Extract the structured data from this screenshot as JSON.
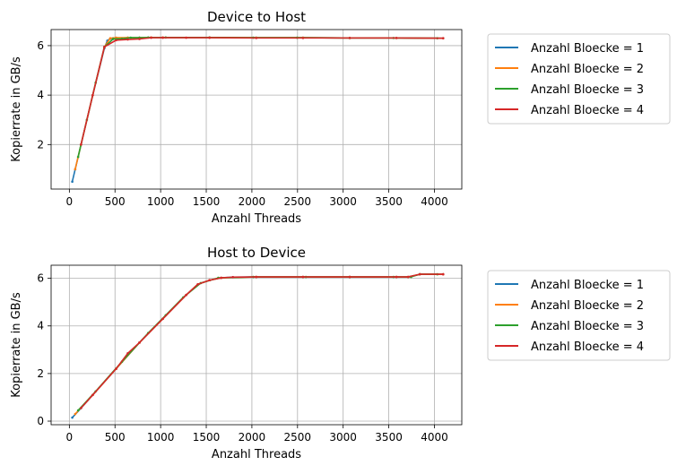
{
  "chart_data": [
    {
      "type": "line",
      "title": "Device to Host",
      "xlabel": "Anzahl Threads",
      "ylabel": "Kopierrate in GB/s",
      "xlim": [
        -200,
        4300
      ],
      "ylim": [
        0.2,
        6.65
      ],
      "xticks": [
        0,
        500,
        1000,
        1500,
        2000,
        2500,
        3000,
        3500,
        4000
      ],
      "yticks": [
        2,
        4,
        6
      ],
      "grid": true,
      "legend": "outside-right",
      "series": [
        {
          "name": "Anzahl Bloecke = 1",
          "color": "#1f77b4",
          "x": [
            32,
            64,
            128,
            256,
            384,
            416,
            448,
            480,
            512,
            640,
            768,
            896,
            1024,
            1536,
            2048,
            2560,
            3072,
            3584,
            4096
          ],
          "y": [
            0.5,
            1.0,
            2.0,
            4.0,
            5.9,
            6.2,
            6.28,
            6.3,
            6.3,
            6.32,
            6.32,
            6.33,
            6.33,
            6.33,
            6.32,
            6.32,
            6.31,
            6.31,
            6.3
          ]
        },
        {
          "name": "Anzahl Bloecke = 2",
          "color": "#ff7f0e",
          "x": [
            64,
            128,
            256,
            384,
            448,
            512,
            640,
            768,
            896,
            1024,
            1536,
            2048,
            2560,
            3072,
            3584,
            4096
          ],
          "y": [
            1.0,
            2.0,
            4.0,
            5.95,
            6.3,
            6.32,
            6.32,
            6.32,
            6.33,
            6.33,
            6.33,
            6.32,
            6.32,
            6.31,
            6.31,
            6.3
          ]
        },
        {
          "name": "Anzahl Bloecke = 3",
          "color": "#2ca02c",
          "x": [
            96,
            192,
            288,
            384,
            480,
            576,
            672,
            768,
            864,
            1056,
            1536,
            2016,
            2496,
            3072,
            3552,
            4032
          ],
          "y": [
            1.5,
            3.0,
            4.5,
            5.95,
            6.27,
            6.28,
            6.32,
            6.32,
            6.33,
            6.33,
            6.33,
            6.32,
            6.32,
            6.31,
            6.31,
            6.3
          ]
        },
        {
          "name": "Anzahl Bloecke = 4",
          "color": "#d62728",
          "x": [
            128,
            256,
            384,
            512,
            640,
            768,
            896,
            1024,
            1280,
            1536,
            2048,
            2560,
            3072,
            3584,
            4096
          ],
          "y": [
            2.0,
            4.0,
            5.95,
            6.22,
            6.25,
            6.27,
            6.32,
            6.32,
            6.32,
            6.32,
            6.31,
            6.31,
            6.31,
            6.31,
            6.3
          ]
        }
      ]
    },
    {
      "type": "line",
      "title": "Host to Device",
      "xlabel": "Anzahl Threads",
      "ylabel": "Kopierrate in GB/s",
      "xlim": [
        -200,
        4300
      ],
      "ylim": [
        -0.15,
        6.55
      ],
      "xticks": [
        0,
        500,
        1000,
        1500,
        2000,
        2500,
        3000,
        3500,
        4000
      ],
      "yticks": [
        0,
        2,
        4,
        6
      ],
      "grid": true,
      "legend": "outside-right",
      "series": [
        {
          "name": "Anzahl Bloecke = 1",
          "color": "#1f77b4",
          "x": [
            32,
            128,
            256,
            512,
            768,
            1024,
            1280,
            1408,
            1536,
            1664,
            1792,
            2048,
            2560,
            3072,
            3584,
            3712,
            3840,
            4096
          ],
          "y": [
            0.15,
            0.55,
            1.1,
            2.2,
            3.3,
            4.3,
            5.3,
            5.75,
            5.92,
            6.02,
            6.05,
            6.06,
            6.06,
            6.06,
            6.06,
            6.06,
            6.17,
            6.17
          ]
        },
        {
          "name": "Anzahl Bloecke = 2",
          "color": "#ff7f0e",
          "x": [
            64,
            256,
            512,
            768,
            1024,
            1280,
            1408,
            1536,
            1664,
            2048,
            2560,
            3072,
            3584,
            3712,
            3840,
            4096
          ],
          "y": [
            0.3,
            1.1,
            2.2,
            3.3,
            4.3,
            5.3,
            5.75,
            5.92,
            6.02,
            6.06,
            6.06,
            6.06,
            6.06,
            6.06,
            6.17,
            6.17
          ]
        },
        {
          "name": "Anzahl Bloecke = 3",
          "color": "#2ca02c",
          "x": [
            96,
            288,
            576,
            864,
            1056,
            1248,
            1440,
            1632,
            2016,
            2592,
            3072,
            3552,
            3744,
            3840,
            4032
          ],
          "y": [
            0.45,
            1.25,
            2.5,
            3.7,
            4.45,
            5.2,
            5.8,
            6.02,
            6.06,
            6.06,
            6.06,
            6.06,
            6.06,
            6.17,
            6.17
          ]
        },
        {
          "name": "Anzahl Bloecke = 4",
          "color": "#d62728",
          "x": [
            128,
            256,
            512,
            640,
            768,
            1024,
            1280,
            1408,
            1536,
            1664,
            1792,
            2048,
            2560,
            3072,
            3584,
            3712,
            3840,
            4096
          ],
          "y": [
            0.55,
            1.1,
            2.2,
            2.85,
            3.3,
            4.3,
            5.3,
            5.75,
            5.92,
            6.02,
            6.05,
            6.06,
            6.06,
            6.06,
            6.06,
            6.06,
            6.17,
            6.17
          ]
        }
      ]
    }
  ]
}
